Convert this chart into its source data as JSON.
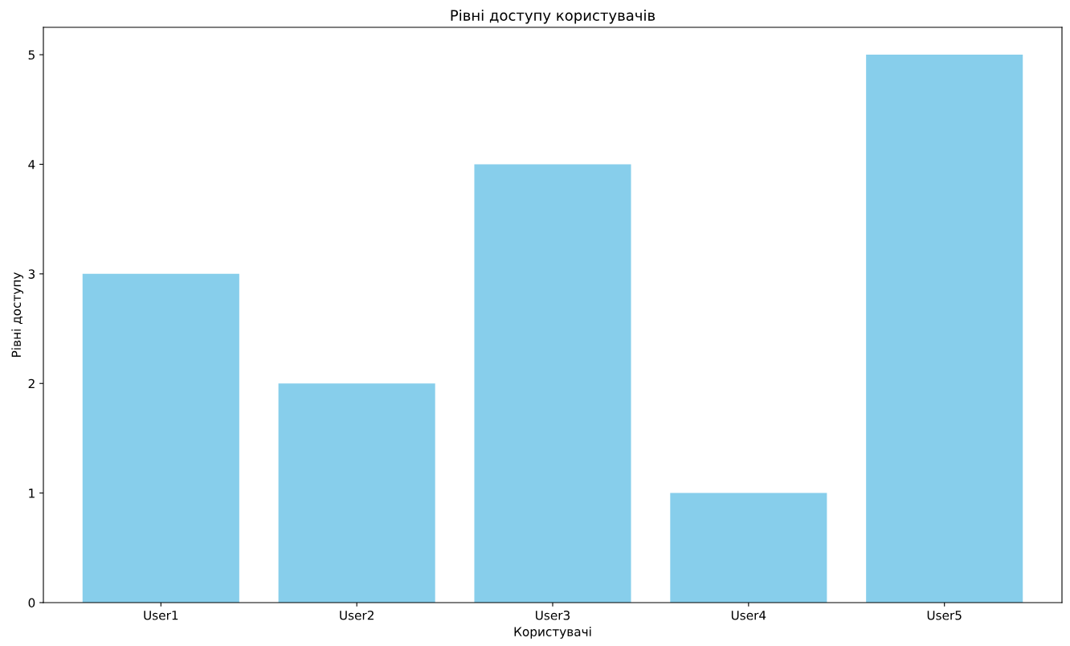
{
  "chart_data": {
    "type": "bar",
    "title": "Рівні доступу користувачів",
    "xlabel": "Користувачі",
    "ylabel": "Рівні доступу",
    "categories": [
      "User1",
      "User2",
      "User3",
      "User4",
      "User5"
    ],
    "values": [
      3,
      2,
      4,
      1,
      5
    ],
    "color": "#87ceeb",
    "ylim": [
      0,
      5.25
    ],
    "yticks": [
      0,
      1,
      2,
      3,
      4,
      5
    ],
    "grid": false,
    "legend": false
  }
}
